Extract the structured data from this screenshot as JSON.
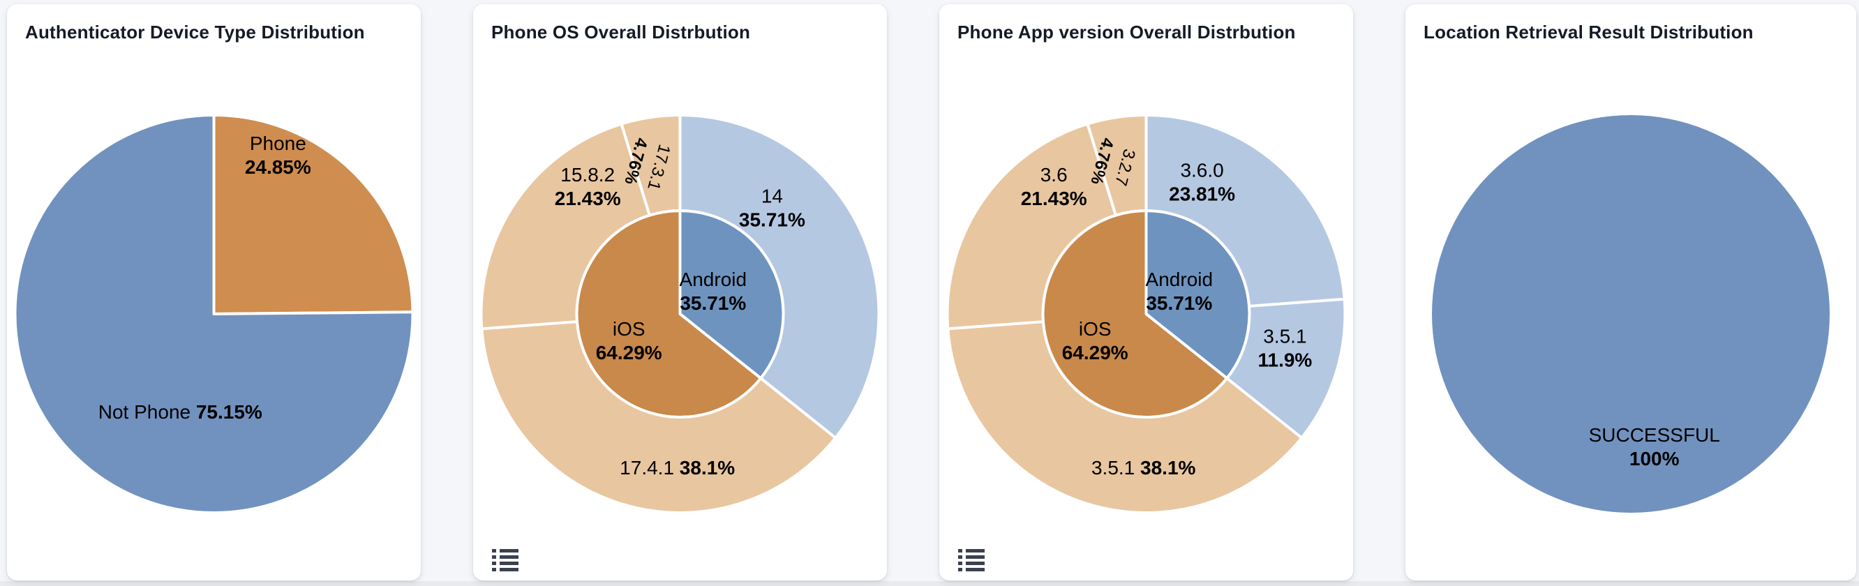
{
  "page": {
    "background": "#f4f6f9",
    "frame_background": "#e8eaed",
    "card_background": "#ffffff"
  },
  "icons": {
    "legend_toggle": "list-icon",
    "legend_toggle_color": "#3b4150"
  },
  "chart_data": [
    {
      "type": "pie",
      "title": "Authenticator Device Type Distribution",
      "legend": "none",
      "slices": [
        {
          "name": "Phone",
          "value": 24.85,
          "pct": "24.85%",
          "color": "#cf8d4f",
          "label_mode": "stack",
          "label_angle": 22,
          "label_r": 245
        },
        {
          "name": "Not Phone",
          "value": 75.15,
          "pct": "75.15%",
          "color": "#7192bf",
          "label_mode": "inline",
          "label_angle": 199,
          "label_r": 148
        }
      ]
    },
    {
      "type": "sunburst",
      "title": "Phone OS Overall Distrbution",
      "legend": "none",
      "rings": [
        {
          "level": "os",
          "r_in": 0,
          "r_out": 148,
          "slices": [
            {
              "name": "Android",
              "value": 35.71,
              "pct": "35.71%",
              "color": "#6e93bf",
              "label_mode": "stack",
              "label_angle": 56,
              "label_r": 57
            },
            {
              "name": "iOS",
              "value": 64.29,
              "pct": "64.29%",
              "color": "#c9894a",
              "label_mode": "stack",
              "label_angle": 242,
              "label_r": 83
            }
          ]
        },
        {
          "level": "os-version",
          "r_in": 148,
          "r_out": 285,
          "slices": [
            {
              "name": "14",
              "value": 35.71,
              "pct": "35.71%",
              "color": "#b5c8e2",
              "label_mode": "stack",
              "label_angle": 41,
              "label_r": 201
            },
            {
              "name": "17.4.1",
              "value": 38.1,
              "pct": "38.1%",
              "color": "#e8c6a0",
              "label_mode": "inline",
              "label_angle": 181,
              "label_r": 220
            },
            {
              "name": "15.8.2",
              "value": 21.43,
              "pct": "21.43%",
              "color": "#e8c6a0",
              "label_mode": "stack",
              "label_angle": 324,
              "label_r": 225
            },
            {
              "name": "17.3.1",
              "value": 4.76,
              "pct": "4.76%",
              "color": "#e8c6a0",
              "label_mode": "stack",
              "label_angle": 348,
              "label_r": 219,
              "label_rotate": 105,
              "label_size": 24
            }
          ]
        }
      ]
    },
    {
      "type": "sunburst",
      "title": "Phone App version Overall Distrbution",
      "legend": "none",
      "rings": [
        {
          "level": "os",
          "r_in": 0,
          "r_out": 148,
          "slices": [
            {
              "name": "Android",
              "value": 35.71,
              "pct": "35.71%",
              "color": "#6e93bf",
              "label_mode": "stack",
              "label_angle": 56,
              "label_r": 57
            },
            {
              "name": "iOS",
              "value": 64.29,
              "pct": "64.29%",
              "color": "#c9894a",
              "label_mode": "stack",
              "label_angle": 242,
              "label_r": 83
            }
          ]
        },
        {
          "level": "app-version",
          "r_in": 148,
          "r_out": 285,
          "slices": [
            {
              "name": "3.6.0",
              "value": 23.81,
              "pct": "23.81%",
              "color": "#b5c8e2",
              "label_mode": "stack",
              "label_angle": 23,
              "label_r": 205
            },
            {
              "name": "3.5.1",
              "value": 11.9,
              "pct": "11.9%",
              "color": "#b5c8e2",
              "label_mode": "stack",
              "label_angle": 104,
              "label_r": 205
            },
            {
              "name": "3.5.1",
              "value": 38.1,
              "pct": "38.1%",
              "color": "#e8c6a0",
              "label_mode": "inline",
              "label_angle": 181,
              "label_r": 220
            },
            {
              "name": "3.6",
              "value": 21.43,
              "pct": "21.43%",
              "color": "#e8c6a0",
              "label_mode": "stack",
              "label_angle": 324,
              "label_r": 225
            },
            {
              "name": "3.2.7",
              "value": 4.76,
              "pct": "4.76%",
              "color": "#e8c6a0",
              "label_mode": "stack",
              "label_angle": 348,
              "label_r": 219,
              "label_rotate": 105,
              "label_size": 24
            }
          ]
        }
      ]
    },
    {
      "type": "pie",
      "title": "Location Retrieval Result Distribution",
      "legend": "none",
      "slices": [
        {
          "name": "SUCCESSFUL",
          "value": 100,
          "pct": "100%",
          "color": "#7192bf",
          "label_mode": "stack",
          "label_angle": 170,
          "label_r": 194
        }
      ]
    }
  ]
}
